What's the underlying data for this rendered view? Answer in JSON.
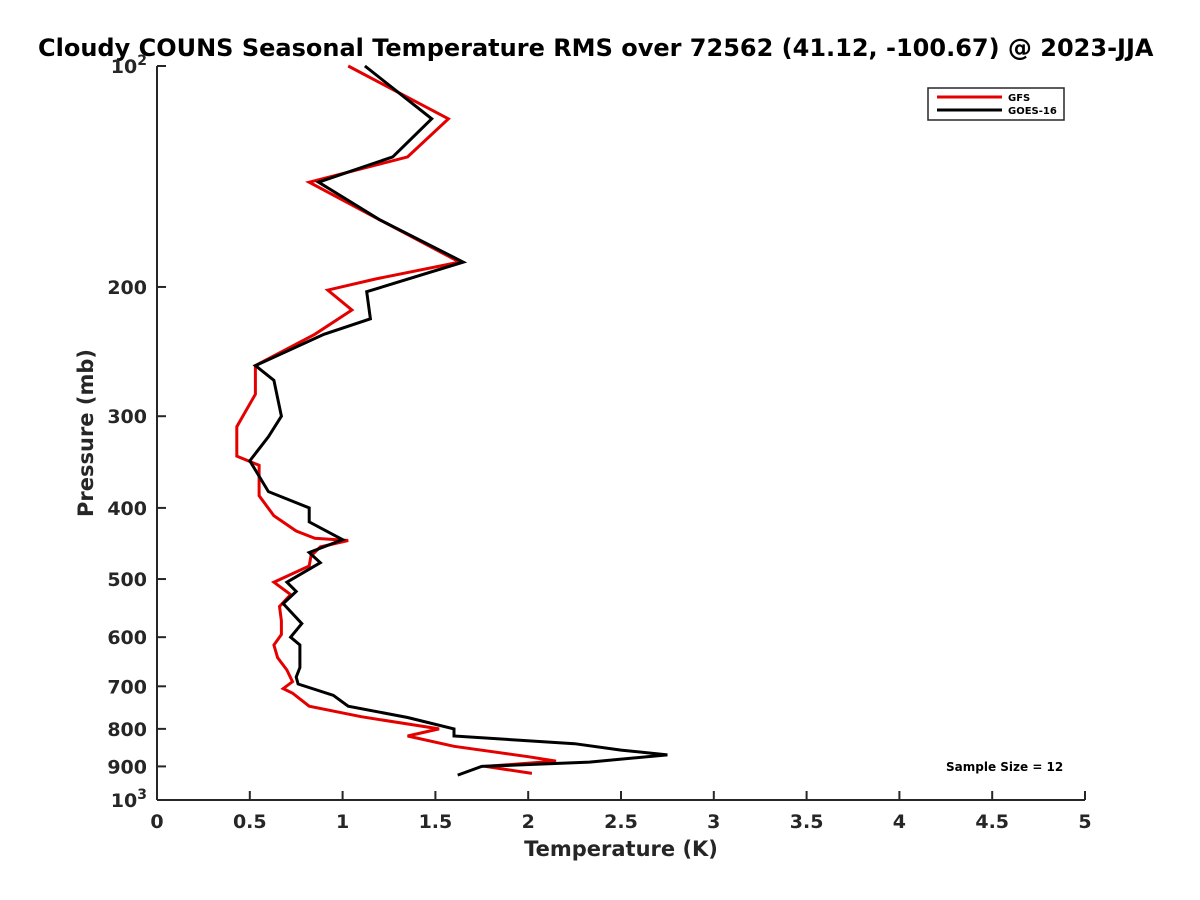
{
  "chart_data": {
    "type": "line",
    "title": "Cloudy COUNS Seasonal Temperature RMS over 72562 (41.12, -100.67) @ 2023-JJA",
    "xlabel": "Temperature (K)",
    "ylabel": "Pressure (mb)",
    "xlim": [
      0,
      5
    ],
    "ylim": [
      100,
      1000
    ],
    "y_scale": "log",
    "y_reversed": true,
    "grid": false,
    "legend_position": "top-right",
    "x_ticks": [
      "0",
      "0.5",
      "1",
      "1.5",
      "2",
      "2.5",
      "3",
      "3.5",
      "4",
      "4.5",
      "5"
    ],
    "x_tick_values": [
      0,
      0.5,
      1,
      1.5,
      2,
      2.5,
      3,
      3.5,
      4,
      4.5,
      5
    ],
    "y_ticks": [
      {
        "value": 100,
        "base": "10",
        "exp": "2"
      },
      {
        "value": 200,
        "label": "200"
      },
      {
        "value": 300,
        "label": "300"
      },
      {
        "value": 400,
        "label": "400"
      },
      {
        "value": 500,
        "label": "500"
      },
      {
        "value": 600,
        "label": "600"
      },
      {
        "value": 700,
        "label": "700"
      },
      {
        "value": 800,
        "label": "800"
      },
      {
        "value": 900,
        "label": "900"
      },
      {
        "value": 1000,
        "base": "10",
        "exp": "3"
      }
    ],
    "annotation": "Sample Size = 12",
    "series": [
      {
        "name": "GFS",
        "color": "#e50000",
        "points": [
          [
            1.03,
            100
          ],
          [
            1.57,
            118
          ],
          [
            1.35,
            133
          ],
          [
            0.82,
            144
          ],
          [
            1.2,
            162
          ],
          [
            1.63,
            185
          ],
          [
            1.18,
            195
          ],
          [
            0.92,
            202
          ],
          [
            1.05,
            215
          ],
          [
            0.85,
            232
          ],
          [
            0.53,
            256
          ],
          [
            0.53,
            280
          ],
          [
            0.43,
            310
          ],
          [
            0.43,
            340
          ],
          [
            0.55,
            350
          ],
          [
            0.55,
            385
          ],
          [
            0.63,
            410
          ],
          [
            0.75,
            430
          ],
          [
            0.85,
            440
          ],
          [
            1.03,
            443
          ],
          [
            0.88,
            452
          ],
          [
            0.83,
            465
          ],
          [
            0.82,
            480
          ],
          [
            0.63,
            505
          ],
          [
            0.72,
            525
          ],
          [
            0.66,
            545
          ],
          [
            0.67,
            570
          ],
          [
            0.67,
            595
          ],
          [
            0.63,
            615
          ],
          [
            0.65,
            640
          ],
          [
            0.7,
            665
          ],
          [
            0.73,
            690
          ],
          [
            0.68,
            705
          ],
          [
            0.73,
            715
          ],
          [
            0.82,
            745
          ],
          [
            1.1,
            770
          ],
          [
            1.52,
            800
          ],
          [
            1.35,
            818
          ],
          [
            1.6,
            845
          ],
          [
            2.0,
            873
          ],
          [
            2.15,
            885
          ],
          [
            1.77,
            900
          ],
          [
            2.02,
            920
          ]
        ]
      },
      {
        "name": "GOES-16",
        "color": "#000000",
        "points": [
          [
            1.12,
            100
          ],
          [
            1.48,
            118
          ],
          [
            1.27,
            133
          ],
          [
            0.87,
            144
          ],
          [
            1.2,
            162
          ],
          [
            1.65,
            185
          ],
          [
            1.13,
            203
          ],
          [
            1.15,
            221
          ],
          [
            0.9,
            232
          ],
          [
            0.53,
            256
          ],
          [
            0.63,
            268
          ],
          [
            0.67,
            300
          ],
          [
            0.6,
            320
          ],
          [
            0.5,
            345
          ],
          [
            0.6,
            380
          ],
          [
            0.82,
            400
          ],
          [
            0.82,
            418
          ],
          [
            1.0,
            442
          ],
          [
            0.82,
            460
          ],
          [
            0.88,
            475
          ],
          [
            0.7,
            505
          ],
          [
            0.75,
            520
          ],
          [
            0.68,
            540
          ],
          [
            0.78,
            575
          ],
          [
            0.72,
            600
          ],
          [
            0.77,
            615
          ],
          [
            0.77,
            660
          ],
          [
            0.75,
            680
          ],
          [
            0.76,
            695
          ],
          [
            0.95,
            720
          ],
          [
            1.03,
            745
          ],
          [
            1.35,
            772
          ],
          [
            1.6,
            800
          ],
          [
            1.6,
            818
          ],
          [
            2.25,
            838
          ],
          [
            2.5,
            855
          ],
          [
            2.75,
            868
          ],
          [
            2.33,
            888
          ],
          [
            1.75,
            900
          ],
          [
            1.62,
            925
          ]
        ]
      }
    ]
  }
}
